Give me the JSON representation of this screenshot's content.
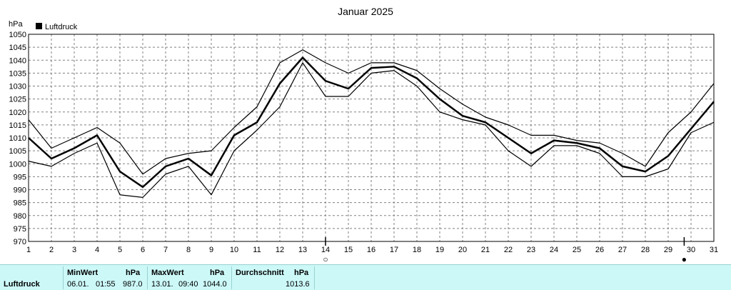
{
  "chart_data": {
    "type": "line",
    "title": "Januar 2025",
    "ylabel": "hPa",
    "legend": [
      "Luftdruck"
    ],
    "legend_position": "top-left",
    "grid": true,
    "ylim": [
      970,
      1050
    ],
    "yticks": [
      970,
      975,
      980,
      985,
      990,
      995,
      1000,
      1005,
      1010,
      1015,
      1020,
      1025,
      1030,
      1035,
      1040,
      1045,
      1050
    ],
    "xlim": [
      1,
      31
    ],
    "x": [
      1,
      2,
      3,
      4,
      5,
      6,
      7,
      8,
      9,
      10,
      11,
      12,
      13,
      14,
      15,
      16,
      17,
      18,
      19,
      20,
      21,
      22,
      23,
      24,
      25,
      26,
      27,
      28,
      29,
      30,
      31
    ],
    "series": [
      {
        "name": "Luftdruck",
        "values": [
          1010,
          1002,
          1006,
          1011,
          997,
          991,
          999,
          1002,
          995.5,
          1011,
          1016,
          1031,
          1041,
          1032,
          1029,
          1037,
          1037.5,
          1033,
          1025,
          1018.5,
          1016,
          1010,
          1004,
          1009,
          1008,
          1006,
          999,
          997,
          1003,
          1013.5,
          1024
        ]
      },
      {
        "values": [
          1017,
          1006,
          1010,
          1014,
          1008,
          996,
          1002,
          1004,
          1005,
          1014,
          1022,
          1039,
          1044,
          1039,
          1035,
          1039,
          1039,
          1036,
          1029,
          1023,
          1018,
          1015,
          1011,
          1011,
          1009,
          1008,
          1004,
          999,
          1012,
          1020,
          1031
        ]
      },
      {
        "values": [
          1001,
          999,
          1004,
          1008,
          988,
          987,
          996,
          999,
          988,
          1005,
          1013,
          1022,
          1039,
          1026,
          1026,
          1035,
          1036,
          1030,
          1020,
          1017,
          1015,
          1005,
          999,
          1007,
          1007,
          1004,
          995,
          995,
          998,
          1012,
          1016
        ]
      }
    ],
    "moon_phases": [
      {
        "x": 14,
        "symbol": "○"
      },
      {
        "x": 29.7,
        "symbol": "●"
      }
    ]
  },
  "footer": {
    "label": "Luftdruck",
    "min": {
      "header": "MinWert",
      "unit": "hPa",
      "date": "06.01.",
      "time": "01:55",
      "value": "987.0"
    },
    "max": {
      "header": "MaxWert",
      "unit": "hPa",
      "date": "13.01.",
      "time": "09:40",
      "value": "1044.0"
    },
    "avg": {
      "header": "Durchschnitt",
      "unit": "hPa",
      "value": "1013.6"
    }
  },
  "colors": {
    "line": "#000000",
    "grid": "#808080",
    "footer_bg": "#ccf8f8"
  }
}
